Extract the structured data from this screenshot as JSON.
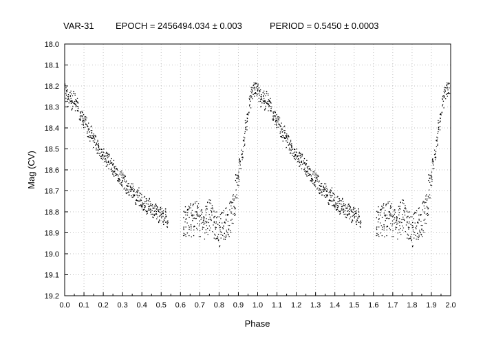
{
  "header": {
    "star": "VAR-31",
    "epoch": "EPOCH = 2456494.034 ± 0.003",
    "period": "PERIOD = 0.5450 ± 0.0003"
  },
  "chart_data": {
    "type": "scatter",
    "xlabel": "Phase",
    "ylabel": "Mag (CV)",
    "xlim": [
      0.0,
      2.0
    ],
    "ylim": [
      19.2,
      18.0
    ],
    "y_inverted": true,
    "grid": true,
    "x_ticks": [
      "0.0",
      "0.1",
      "0.2",
      "0.3",
      "0.4",
      "0.5",
      "0.6",
      "0.7",
      "0.8",
      "0.9",
      "1.0",
      "1.1",
      "1.2",
      "1.3",
      "1.4",
      "1.5",
      "1.6",
      "1.7",
      "1.8",
      "1.9",
      "2.0"
    ],
    "y_ticks": [
      "18.0",
      "18.1",
      "18.2",
      "18.3",
      "18.4",
      "18.5",
      "18.6",
      "18.7",
      "18.8",
      "18.9",
      "19.0",
      "19.1",
      "19.2"
    ],
    "series": [
      {
        "color": "#000000",
        "points_note": "",
        "x": [
          0.0,
          0.01,
          0.02,
          0.03,
          0.04,
          0.05,
          0.06,
          0.07,
          0.08,
          0.09,
          0.1,
          0.11,
          0.12,
          0.13,
          0.14,
          0.15,
          0.16,
          0.17,
          0.18,
          0.19,
          0.2,
          0.21,
          0.22,
          0.23,
          0.24,
          0.25,
          0.26,
          0.27,
          0.28,
          0.29,
          0.3,
          0.31,
          0.32,
          0.33,
          0.34,
          0.35,
          0.36,
          0.37,
          0.38,
          0.39,
          0.4,
          0.41,
          0.42,
          0.43,
          0.44,
          0.45,
          0.46,
          0.47,
          0.48,
          0.49,
          0.5,
          0.51,
          0.52,
          0.53,
          0.62,
          0.63,
          0.64,
          0.65,
          0.66,
          0.67,
          0.68,
          0.69,
          0.7,
          0.71,
          0.72,
          0.73,
          0.74,
          0.75,
          0.76,
          0.77,
          0.78,
          0.79,
          0.8,
          0.81,
          0.82,
          0.83,
          0.84,
          0.85,
          0.86,
          0.87,
          0.88,
          0.89,
          0.9,
          0.91,
          0.92,
          0.93,
          0.94,
          0.95,
          0.96,
          0.97,
          0.98,
          0.99
        ],
        "y": [
          18.22,
          18.24,
          18.27,
          18.25,
          18.28,
          18.26,
          18.3,
          18.29,
          18.33,
          18.35,
          18.37,
          18.38,
          18.41,
          18.43,
          18.42,
          18.46,
          18.47,
          18.49,
          18.5,
          18.52,
          18.53,
          18.54,
          18.55,
          18.56,
          18.58,
          18.59,
          18.61,
          18.62,
          18.63,
          18.64,
          18.65,
          18.66,
          18.68,
          18.69,
          18.7,
          18.7,
          18.72,
          18.73,
          18.72,
          18.74,
          18.75,
          18.76,
          18.77,
          18.78,
          18.77,
          18.79,
          18.8,
          18.79,
          18.81,
          18.82,
          18.81,
          18.83,
          18.82,
          18.84,
          18.86,
          18.85,
          18.84,
          18.83,
          18.85,
          18.84,
          18.83,
          18.82,
          18.84,
          18.85,
          18.86,
          18.84,
          18.83,
          18.82,
          18.84,
          18.85,
          18.87,
          18.88,
          18.89,
          18.88,
          18.87,
          18.86,
          18.85,
          18.84,
          18.82,
          18.79,
          18.75,
          18.7,
          18.64,
          18.58,
          18.52,
          18.46,
          18.4,
          18.34,
          18.28,
          18.24,
          18.22,
          18.21
        ]
      }
    ]
  }
}
